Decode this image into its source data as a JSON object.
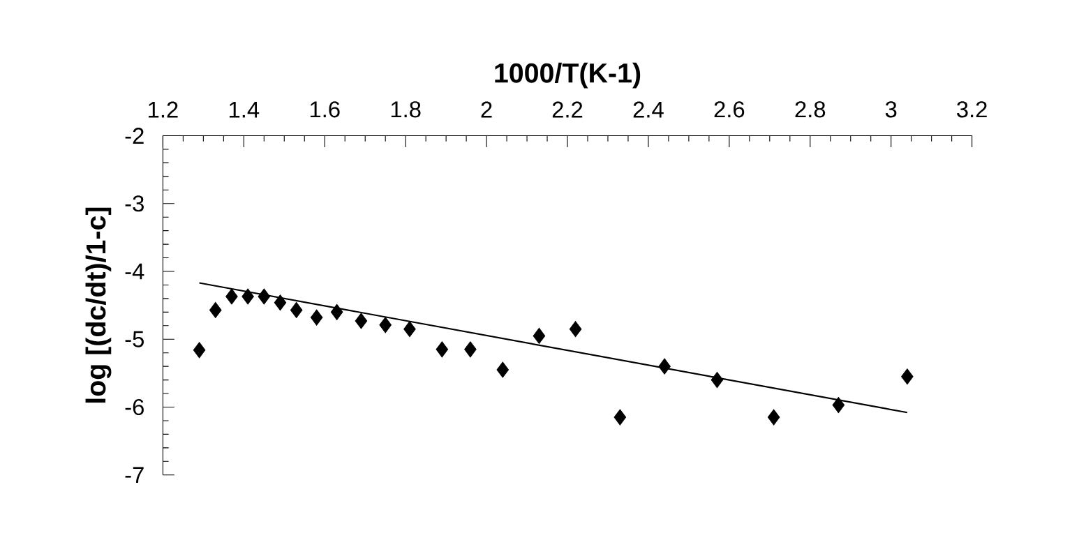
{
  "chart_data": {
    "type": "scatter",
    "xlabel": "1000/T(K-1)",
    "ylabel": "log [(dc/dt)/1-c]",
    "xlim": [
      1.2,
      3.2
    ],
    "ylim": [
      -7,
      -2
    ],
    "xticks": [
      {
        "value": 1.2,
        "label": "1.2"
      },
      {
        "value": 1.4,
        "label": "1.4"
      },
      {
        "value": 1.6,
        "label": "1.6"
      },
      {
        "value": 1.8,
        "label": "1.8"
      },
      2,
      {
        "value": 2.2,
        "label": "2.2"
      },
      {
        "value": 2.4,
        "label": "2.4"
      },
      {
        "value": 2.6,
        "label": "2.6"
      },
      {
        "value": 2.8,
        "label": "2.8"
      },
      3,
      {
        "value": 3.2,
        "label": "3.2"
      }
    ],
    "yticks": [
      -7,
      -6,
      -5,
      -4,
      -3,
      -2
    ],
    "marker": "diamond",
    "series": [
      {
        "color": "#000000",
        "x": [
          1.29,
          1.33,
          1.37,
          1.41,
          1.45,
          1.49,
          1.53,
          1.58,
          1.63,
          1.69,
          1.75,
          1.81,
          1.89,
          1.96,
          2.04,
          2.13,
          2.22,
          2.33,
          2.44,
          2.57,
          2.71,
          2.87,
          3.04
        ],
        "values": [
          -5.16,
          -4.57,
          -4.37,
          -4.37,
          -4.37,
          -4.46,
          -4.57,
          -4.68,
          -4.6,
          -4.73,
          -4.79,
          -4.85,
          -5.15,
          -5.15,
          -5.45,
          -4.95,
          -4.85,
          -6.15,
          -5.4,
          -5.6,
          -6.15,
          -5.97,
          -5.55
        ]
      },
      {
        "type": "line",
        "color": "#000000",
        "marker": "none",
        "x": [
          1.29,
          3.04
        ],
        "values": [
          -4.17,
          -6.08
        ]
      }
    ]
  }
}
